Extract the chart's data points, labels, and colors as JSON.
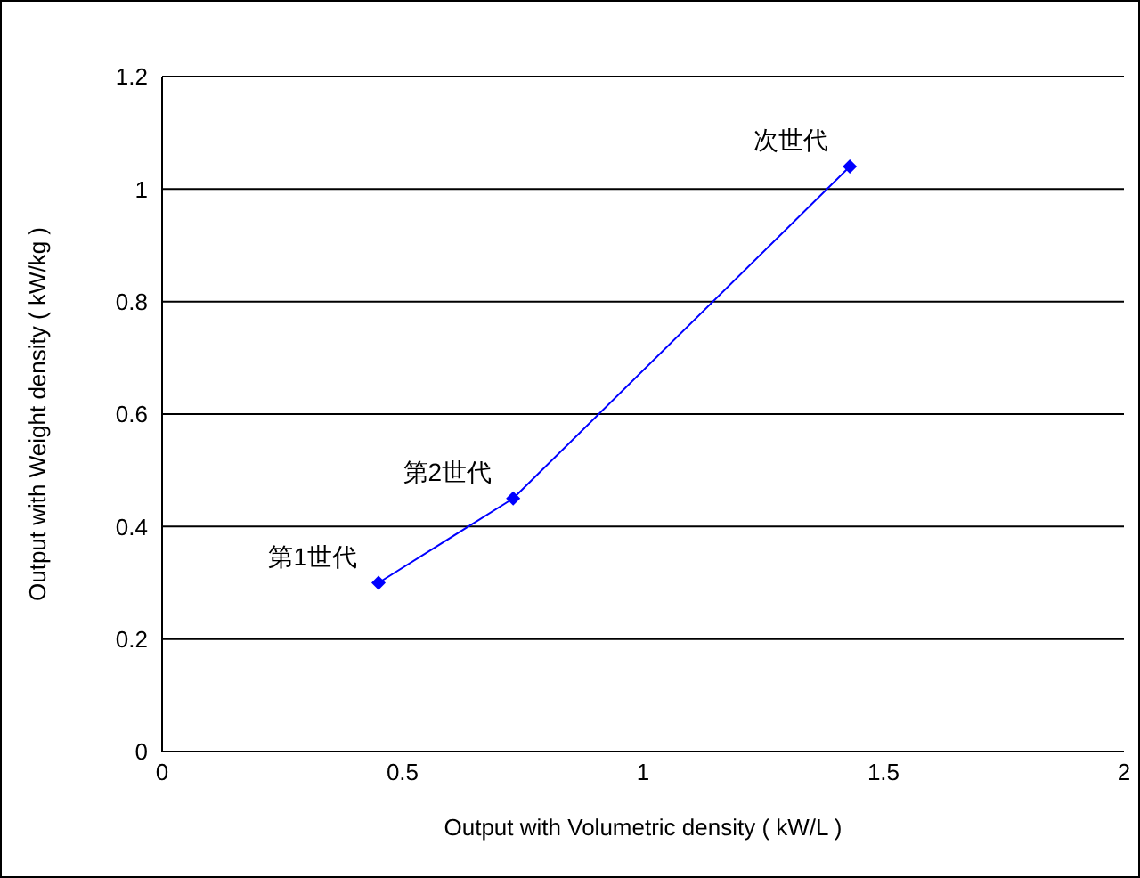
{
  "chart_data": {
    "type": "line",
    "xlabel": "Output with Volumetric density ( kW/L )",
    "ylabel": "Output with Weight density ( kW/kg )",
    "x": [
      0.45,
      0.73,
      1.43
    ],
    "series": [
      {
        "color": "#0000ff",
        "values": [
          0.3,
          0.45,
          1.04
        ]
      }
    ],
    "xlim": [
      0,
      2
    ],
    "xticks": [
      0,
      0.5,
      1,
      1.5,
      2
    ],
    "ylim": [
      0,
      1.2
    ],
    "yticks": [
      0,
      0.2,
      0.4,
      0.6,
      0.8,
      1,
      1.2
    ],
    "grid": "y",
    "marker": "diamond",
    "line_style": "solid",
    "annotations": [
      {
        "text": "第1世代",
        "x": 0.45,
        "y": 0.3
      },
      {
        "text": "第2世代",
        "x": 0.73,
        "y": 0.45
      },
      {
        "text": "次世代",
        "x": 1.43,
        "y": 1.04
      }
    ]
  }
}
